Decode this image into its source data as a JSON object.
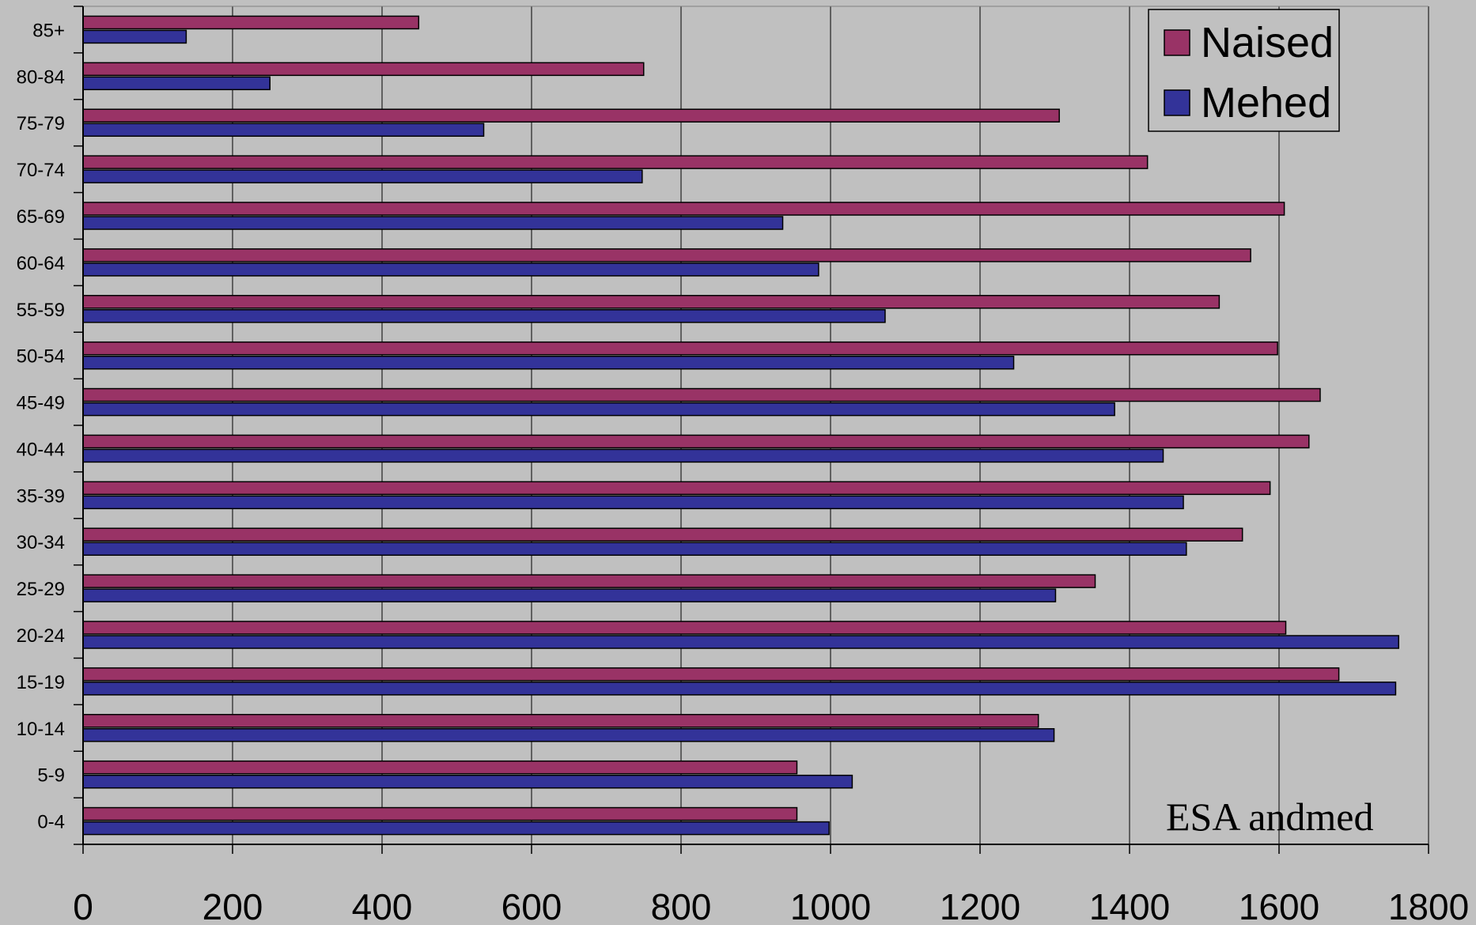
{
  "chart_data": {
    "type": "bar",
    "orientation": "horizontal",
    "categories": [
      "0-4",
      "5-9",
      "10-14",
      "15-19",
      "20-24",
      "25-29",
      "30-34",
      "35-39",
      "40-44",
      "45-49",
      "50-54",
      "55-59",
      "60-64",
      "65-69",
      "70-74",
      "75-79",
      "80-84",
      "85+"
    ],
    "series": [
      {
        "name": "Naised",
        "color": "#993366",
        "values": [
          955,
          955,
          1278,
          1680,
          1609,
          1354,
          1551,
          1588,
          1640,
          1655,
          1598,
          1520,
          1562,
          1607,
          1424,
          1306,
          750,
          449
        ]
      },
      {
        "name": "Mehed",
        "color": "#333399",
        "values": [
          998,
          1029,
          1299,
          1756,
          1760,
          1301,
          1476,
          1472,
          1445,
          1380,
          1245,
          1073,
          984,
          936,
          748,
          536,
          250,
          138
        ]
      }
    ],
    "title": "",
    "xlabel": "",
    "ylabel": "",
    "xlim": [
      0,
      1800
    ],
    "xticks": [
      0,
      200,
      400,
      600,
      800,
      1000,
      1200,
      1400,
      1600,
      1800
    ],
    "grid": "vertical",
    "legend": "top-right",
    "background": "#c0c0c0",
    "annotation": "ESA andmed"
  }
}
